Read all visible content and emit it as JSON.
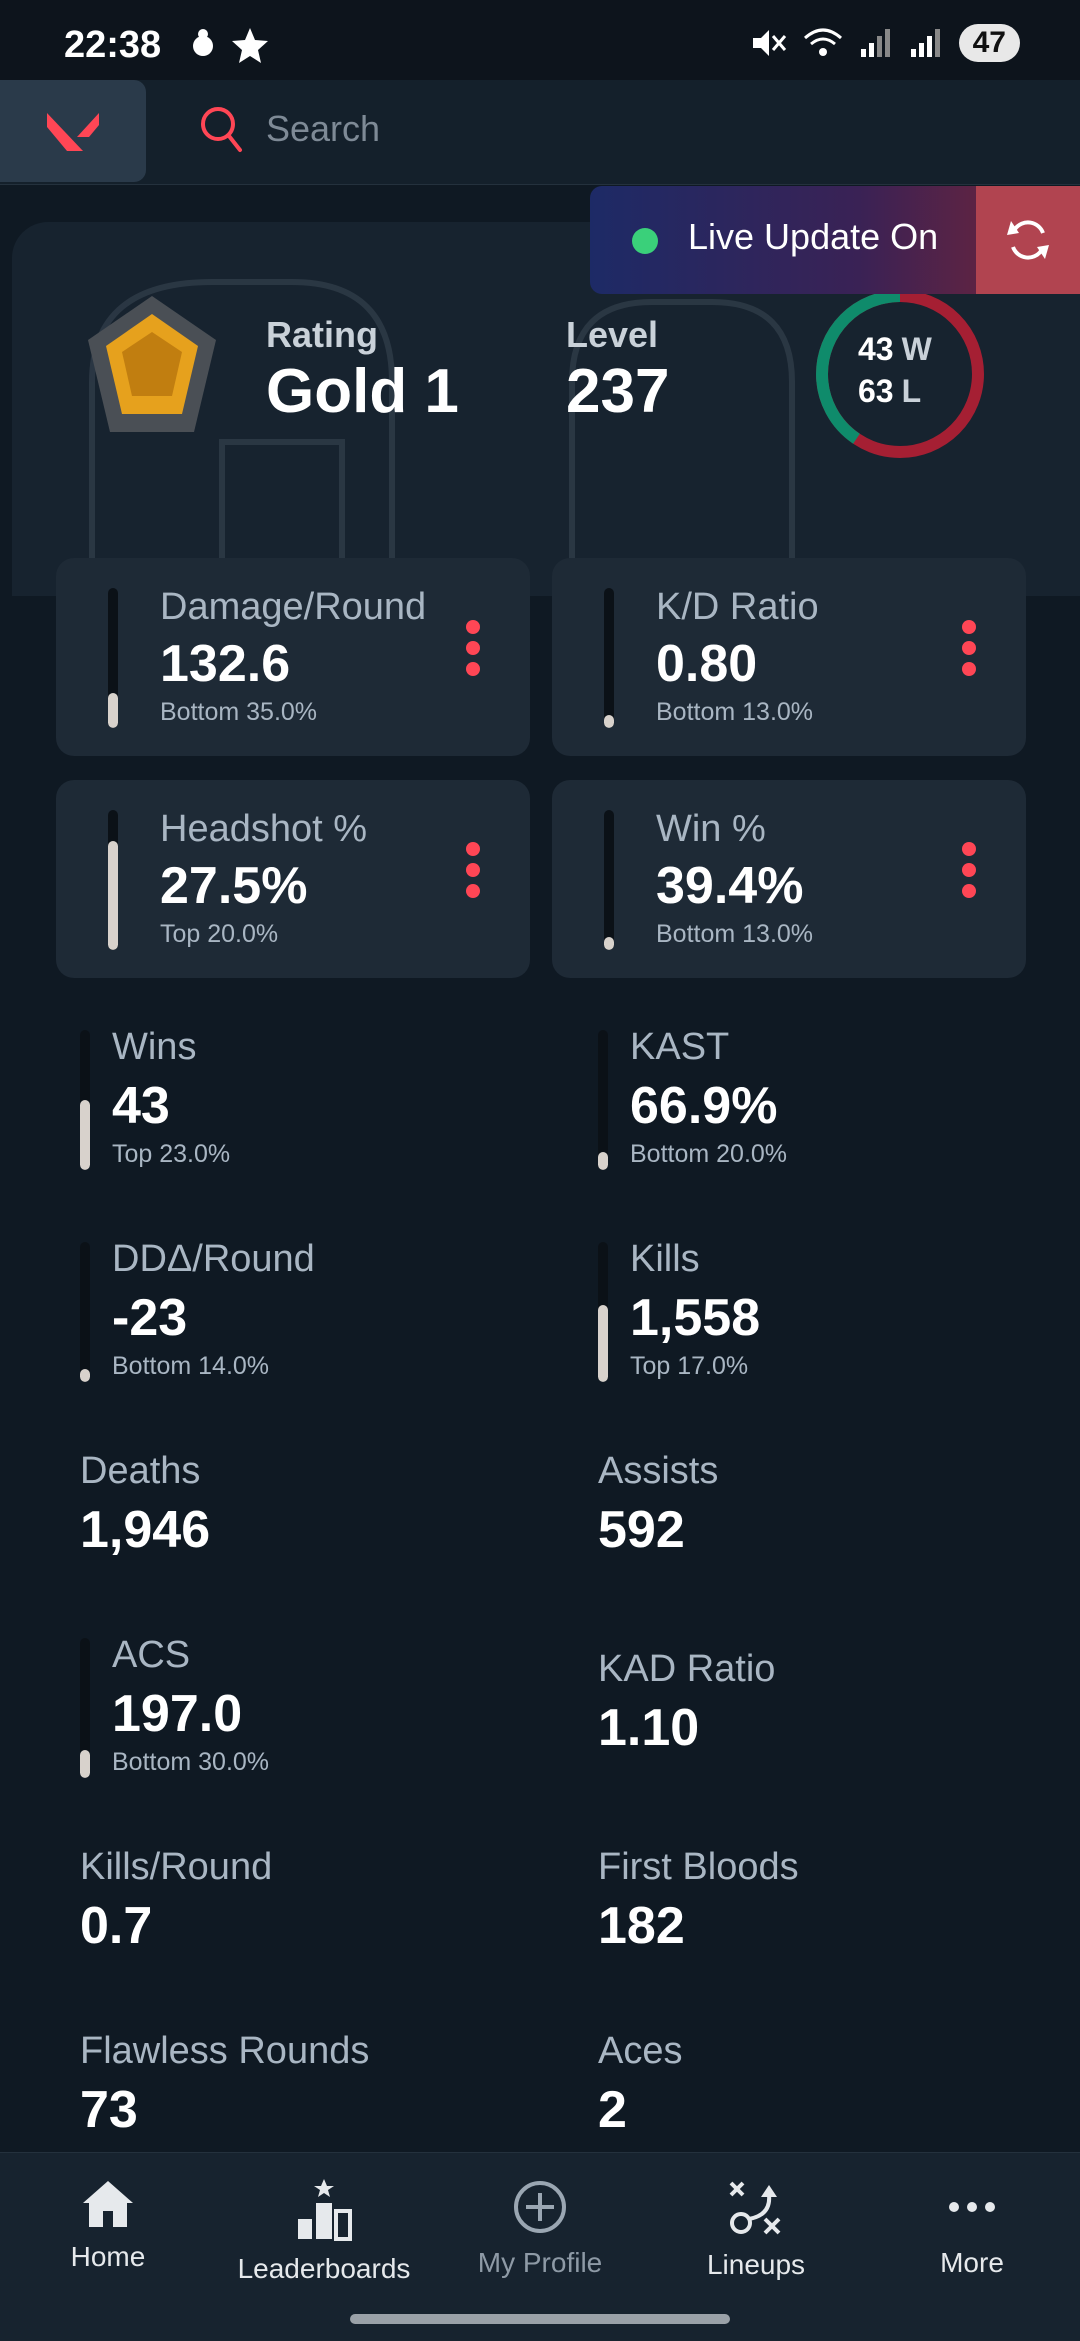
{
  "status_bar": {
    "time": "22:38",
    "battery": "47"
  },
  "search": {
    "placeholder": "Search"
  },
  "profile": {
    "rating_label": "Rating",
    "rating_value": "Gold 1",
    "level_label": "Level",
    "level_value": "237",
    "wins_count": "43",
    "wins_suffix": "W",
    "losses_count": "63",
    "losses_suffix": "L",
    "win_fraction": 0.406
  },
  "live_update": {
    "label": "Live Update On"
  },
  "cards": [
    {
      "label": "Damage/Round",
      "value": "132.6",
      "sub": "Bottom 35.0%",
      "fill": 0.25
    },
    {
      "label": "K/D Ratio",
      "value": "0.80",
      "sub": "Bottom 13.0%",
      "fill": 0.09
    },
    {
      "label": "Headshot %",
      "value": "27.5%",
      "sub": "Top 20.0%",
      "fill": 0.78
    },
    {
      "label": "Win %",
      "value": "39.4%",
      "sub": "Bottom 13.0%",
      "fill": 0.09
    }
  ],
  "stats": [
    {
      "label": "Wins",
      "value": "43",
      "sub": "Top 23.0%",
      "fill": 0.5
    },
    {
      "label": "KAST",
      "value": "66.9%",
      "sub": "Bottom 20.0%",
      "fill": 0.13
    },
    {
      "label": "DDΔ/Round",
      "value": "-23",
      "sub": "Bottom 14.0%",
      "fill": 0.09
    },
    {
      "label": "Kills",
      "value": "1,558",
      "sub": "Top 17.0%",
      "fill": 0.55
    },
    {
      "label": "Deaths",
      "value": "1,946"
    },
    {
      "label": "Assists",
      "value": "592"
    },
    {
      "label": "ACS",
      "value": "197.0",
      "sub": "Bottom 30.0%",
      "fill": 0.2
    },
    {
      "label": "KAD Ratio",
      "value": "1.10"
    },
    {
      "label": "Kills/Round",
      "value": "0.7"
    },
    {
      "label": "First Bloods",
      "value": "182"
    },
    {
      "label": "Flawless Rounds",
      "value": "73"
    },
    {
      "label": "Aces",
      "value": "2"
    }
  ],
  "nav": [
    {
      "label": "Home",
      "icon": "home-icon"
    },
    {
      "label": "Leaderboards",
      "icon": "leaderboard-icon"
    },
    {
      "label": "My Profile",
      "icon": "plus-circle-icon"
    },
    {
      "label": "Lineups",
      "icon": "lineups-icon"
    },
    {
      "label": "More",
      "icon": "more-icon"
    }
  ],
  "colors": {
    "accent": "#ff4655",
    "win": "#0f8b6b",
    "loss": "#a51f33",
    "live_dot": "#3ad07a"
  }
}
